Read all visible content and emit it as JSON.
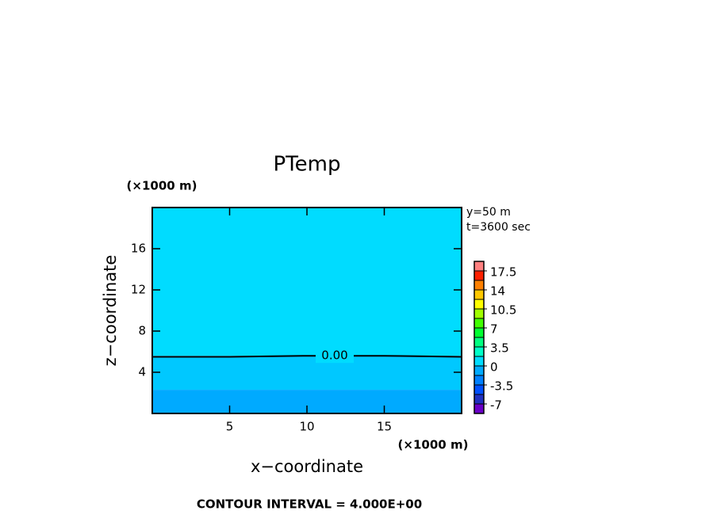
{
  "chart_data": {
    "type": "contour",
    "title": "PTemp",
    "x_label": "x−coordinate",
    "y_label": "z−coordinate",
    "x_unit": "(×1000 m)",
    "y_unit": "(×1000 m)",
    "annotations": [
      "y=50 m",
      "t=3600 sec"
    ],
    "footer": "CONTOUR INTERVAL = 4.000E+00",
    "xlim": [
      0,
      20
    ],
    "ylim": [
      0,
      20
    ],
    "xticks": [
      5,
      10,
      15
    ],
    "yticks": [
      4,
      8,
      12,
      16
    ],
    "regions": [
      {
        "color": "#00dcff",
        "zlim": [
          5.6,
          20
        ]
      },
      {
        "color": "#00c8ff",
        "zlim": [
          2.3,
          5.6
        ]
      },
      {
        "color": "#00aaff",
        "zlim": [
          0,
          2.3
        ]
      }
    ],
    "contours": [
      {
        "x": [
          0,
          5,
          10,
          15,
          20
        ],
        "z": [
          5.5,
          5.5,
          5.6,
          5.6,
          5.5
        ],
        "level": 0,
        "value_label": "0.00"
      }
    ],
    "colorbar": {
      "levels": [
        -8.75,
        -7,
        -5.25,
        -3.5,
        -1.75,
        0,
        1.75,
        3.5,
        5.25,
        7,
        8.75,
        10.5,
        12.25,
        14,
        15.75,
        17.5,
        19.25
      ],
      "colors": [
        "#6a00c8",
        "#2030c0",
        "#0050ff",
        "#0080ff",
        "#00aaff",
        "#00dcff",
        "#00ffc8",
        "#00ff80",
        "#00ff30",
        "#40ff00",
        "#a0ff00",
        "#ffff00",
        "#ffc800",
        "#ff8000",
        "#ff2000",
        "#ff8080"
      ],
      "ticks": [
        -7,
        -3.5,
        0,
        3.5,
        7,
        10.5,
        14,
        17.5
      ]
    }
  }
}
